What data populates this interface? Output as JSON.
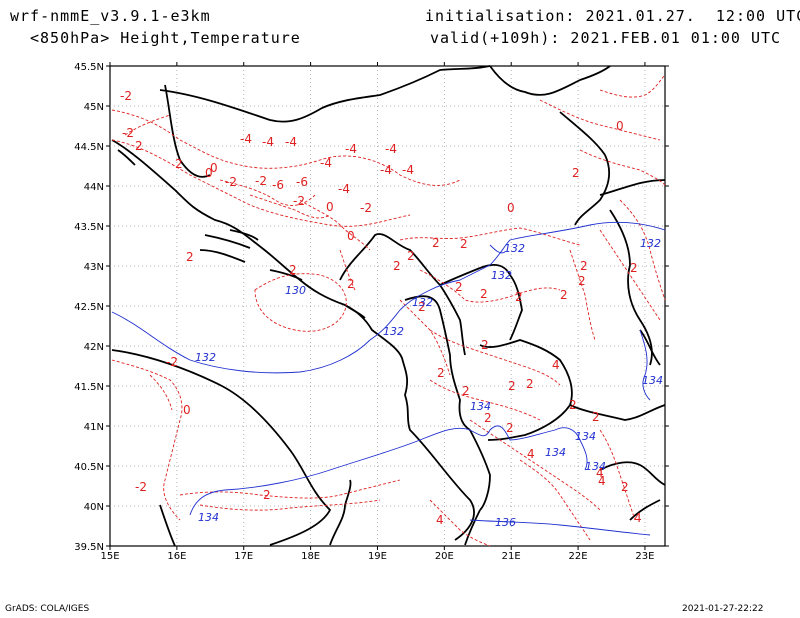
{
  "header": {
    "model": "wrf-nmmE_v3.9.1-e3km",
    "level_field": "<850hPa> Height,Temperature",
    "init": "initialisation: 2021.01.27.  12:00 UTC",
    "valid": "valid(+109h): 2021.FEB.01 01:00 UTC"
  },
  "footer": {
    "left": "GrADS: COLA/IGES",
    "right": "2021-01-27-22:22"
  },
  "map": {
    "lat_labels": [
      "45.5N",
      "45N",
      "44.5N",
      "44N",
      "43.5N",
      "43N",
      "42.5N",
      "42N",
      "41.5N",
      "41N",
      "40.5N",
      "40N",
      "39.5N"
    ],
    "lon_labels": [
      "15E",
      "16E",
      "17E",
      "18E",
      "19E",
      "20E",
      "21E",
      "22E",
      "23E"
    ],
    "colors": {
      "temperature": "#e02020",
      "height": "#2030d0",
      "coast": "#000000"
    },
    "temperature_labels": [
      "-2",
      "2",
      "-2",
      "-4",
      "-4",
      "-4",
      "-4",
      "-4",
      "-4",
      "-4",
      "-2",
      "-6",
      "-6",
      "-4",
      "-2",
      "-4",
      "-2",
      "0",
      "0",
      "-2",
      "2",
      "0",
      "0",
      "2",
      "2",
      "2",
      "2",
      "2",
      "2",
      "2",
      "2",
      "2",
      "2",
      "2",
      "2",
      "2",
      "2",
      "2",
      "2",
      "4",
      "2",
      "2",
      "2",
      "2",
      "2",
      "4",
      "2",
      "4",
      "4",
      "2",
      "2",
      "0",
      "0",
      "2",
      "0",
      "-2",
      "-2",
      "2",
      "4",
      "4",
      "2"
    ],
    "height_labels": [
      "130",
      "132",
      "132",
      "132",
      "132",
      "132",
      "132",
      "134",
      "134",
      "134",
      "134",
      "134",
      "136",
      "134"
    ]
  }
}
